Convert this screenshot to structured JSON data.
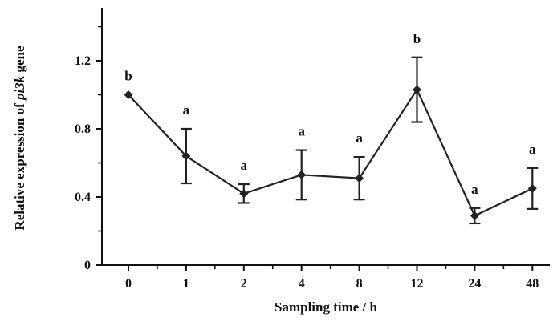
{
  "chart_data": {
    "type": "line",
    "title": "",
    "xlabel": "Sampling time / h",
    "ylabel_parts": {
      "prefix": "Relative expression of ",
      "gene": "pi3k",
      "suffix": " gene"
    },
    "categories": [
      "0",
      "1",
      "2",
      "4",
      "8",
      "12",
      "24",
      "48"
    ],
    "series": [
      {
        "values": [
          1.0,
          0.64,
          0.42,
          0.53,
          0.51,
          1.03,
          0.29,
          0.45
        ],
        "error": [
          0.0,
          0.16,
          0.055,
          0.145,
          0.125,
          0.19,
          0.045,
          0.12
        ],
        "significance": [
          "b",
          "a",
          "a",
          "a",
          "a",
          "b",
          "a",
          "a"
        ]
      }
    ],
    "yticks": [
      "0",
      "0.4",
      "0.8",
      "1.2"
    ],
    "ylim": [
      0,
      1.5
    ],
    "grid": false,
    "legend": "none",
    "line_color": "#222222",
    "axis_color": "#111111"
  }
}
